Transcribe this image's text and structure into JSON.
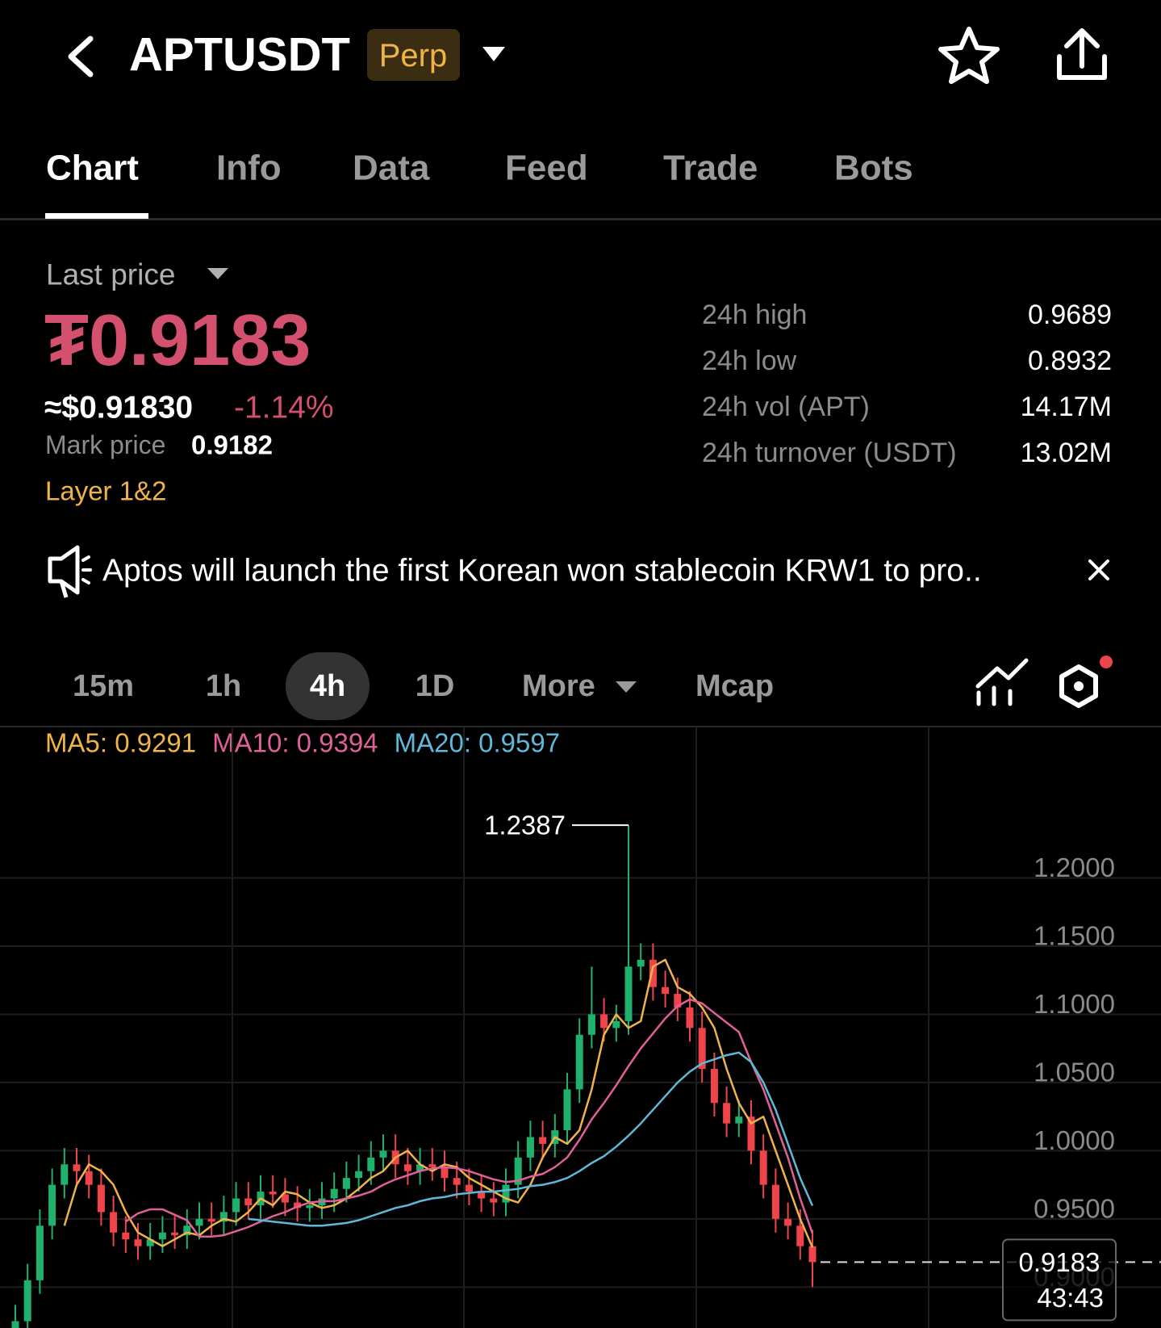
{
  "header": {
    "title": "APTUSDT",
    "badge": "Perp"
  },
  "tabs": [
    "Chart",
    "Info",
    "Data",
    "Feed",
    "Trade",
    "Bots"
  ],
  "price": {
    "label": "Last price",
    "last": "₮0.9183",
    "usd": "≈$0.91830",
    "change": "-1.14%",
    "mark_label": "Mark price",
    "mark": "0.9182",
    "tag": "Layer 1&2"
  },
  "stats": [
    {
      "label": "24h high",
      "value": "0.9689"
    },
    {
      "label": "24h low",
      "value": "0.8932"
    },
    {
      "label": "24h vol (APT)",
      "value": "14.17M"
    },
    {
      "label": "24h turnover (USDT)",
      "value": "13.02M"
    }
  ],
  "announcement": "Aptos will launch the first Korean won stablecoin KRW1 to pro..",
  "timeframes": [
    "15m",
    "1h",
    "4h",
    "1D",
    "More",
    "Mcap"
  ],
  "chart_data": {
    "type": "candlestick",
    "up_color": "#20b26c",
    "down_color": "#ef454a",
    "countdown": "43:43",
    "ylim": [
      0.87,
      1.311
    ],
    "yticks": [
      {
        "value": 0.9,
        "label": "0.9000"
      },
      {
        "value": 0.95,
        "label": "0.9500"
      },
      {
        "value": 1.0,
        "label": "1.0000"
      },
      {
        "value": 1.05,
        "label": "1.0500"
      },
      {
        "value": 1.1,
        "label": "1.1000"
      },
      {
        "value": 1.15,
        "label": "1.1500"
      },
      {
        "value": 1.2,
        "label": "1.2000"
      }
    ],
    "grid": true,
    "open": [
      0.86,
      0.875,
      0.905,
      0.945,
      0.975,
      0.99,
      0.985,
      0.975,
      0.955,
      0.94,
      0.935,
      0.93,
      0.935,
      0.94,
      0.938,
      0.945,
      0.95,
      0.948,
      0.955,
      0.965,
      0.96,
      0.97,
      0.968,
      0.962,
      0.958,
      0.96,
      0.965,
      0.972,
      0.98,
      0.985,
      0.995,
      1.0,
      0.99,
      0.985,
      0.99,
      0.988,
      0.98,
      0.975,
      0.97,
      0.965,
      0.962,
      0.975,
      0.995,
      1.01,
      1.005,
      1.015,
      1.045,
      1.085,
      1.1,
      1.09,
      1.095,
      1.135,
      1.14,
      1.12,
      1.115,
      1.105,
      1.09,
      1.06,
      1.035,
      1.02,
      1.025,
      1.0,
      0.975,
      0.95,
      0.945,
      0.93
    ],
    "high": [
      0.887,
      0.917,
      0.957,
      0.987,
      1.002,
      1.002,
      0.997,
      0.987,
      0.967,
      0.952,
      0.947,
      0.947,
      0.952,
      0.952,
      0.957,
      0.962,
      0.962,
      0.967,
      0.977,
      0.977,
      0.982,
      0.982,
      0.98,
      0.974,
      0.972,
      0.977,
      0.984,
      0.992,
      0.997,
      1.007,
      1.012,
      1.012,
      1.002,
      1.002,
      1.002,
      1.0,
      0.992,
      0.987,
      0.982,
      0.977,
      0.987,
      1.007,
      1.022,
      1.022,
      1.027,
      1.057,
      1.097,
      1.135,
      1.112,
      1.107,
      1.2387,
      1.152,
      1.152,
      1.132,
      1.127,
      1.117,
      1.102,
      1.072,
      1.047,
      1.037,
      1.037,
      1.012,
      0.987,
      0.962,
      0.957,
      0.942
    ],
    "low": [
      0.85,
      0.865,
      0.895,
      0.935,
      0.965,
      0.975,
      0.965,
      0.945,
      0.93,
      0.925,
      0.92,
      0.92,
      0.925,
      0.928,
      0.928,
      0.935,
      0.938,
      0.938,
      0.945,
      0.95,
      0.95,
      0.958,
      0.952,
      0.948,
      0.948,
      0.95,
      0.955,
      0.962,
      0.97,
      0.975,
      0.985,
      0.98,
      0.975,
      0.975,
      0.978,
      0.97,
      0.965,
      0.96,
      0.955,
      0.952,
      0.952,
      0.965,
      0.985,
      0.995,
      0.995,
      1.005,
      1.035,
      1.075,
      1.08,
      1.08,
      1.085,
      1.125,
      1.11,
      1.105,
      1.095,
      1.08,
      1.05,
      1.025,
      1.01,
      1.01,
      0.99,
      0.965,
      0.94,
      0.935,
      0.92,
      0.9
    ],
    "close": [
      0.875,
      0.905,
      0.945,
      0.975,
      0.99,
      0.985,
      0.975,
      0.955,
      0.94,
      0.935,
      0.93,
      0.935,
      0.94,
      0.938,
      0.945,
      0.95,
      0.948,
      0.955,
      0.965,
      0.96,
      0.97,
      0.968,
      0.962,
      0.958,
      0.96,
      0.965,
      0.972,
      0.98,
      0.985,
      0.995,
      1.0,
      0.99,
      0.985,
      0.99,
      0.988,
      0.98,
      0.975,
      0.97,
      0.965,
      0.962,
      0.975,
      0.995,
      1.01,
      1.005,
      1.015,
      1.045,
      1.085,
      1.1,
      1.09,
      1.095,
      1.135,
      1.14,
      1.12,
      1.115,
      1.105,
      1.09,
      1.06,
      1.035,
      1.02,
      1.025,
      1.0,
      0.975,
      0.95,
      0.945,
      0.93,
      0.9183
    ],
    "series": [
      {
        "name": "MA5: 0.9291",
        "color": "#f0b34a",
        "values": [
          null,
          null,
          null,
          null,
          0.945,
          0.975,
          0.99,
          0.985,
          0.975,
          0.955,
          0.94,
          0.935,
          0.93,
          0.935,
          0.94,
          0.938,
          0.945,
          0.95,
          0.948,
          0.955,
          0.965,
          0.96,
          0.97,
          0.968,
          0.962,
          0.958,
          0.96,
          0.965,
          0.972,
          0.98,
          0.985,
          0.995,
          1.0,
          0.99,
          0.985,
          0.99,
          0.988,
          0.98,
          0.975,
          0.97,
          0.965,
          0.962,
          0.975,
          0.995,
          1.01,
          1.005,
          1.015,
          1.045,
          1.085,
          1.1,
          1.09,
          1.095,
          1.135,
          1.14,
          1.12,
          1.115,
          1.105,
          1.09,
          1.06,
          1.035,
          1.02,
          1.025,
          1.0,
          0.975,
          0.95,
          0.9291
        ]
      },
      {
        "name": "MA10: 0.9394",
        "color": "#e0609a",
        "values": [
          null,
          null,
          null,
          null,
          null,
          null,
          null,
          null,
          null,
          0.948,
          0.954,
          0.957,
          0.957,
          0.953,
          0.949,
          0.937,
          0.937,
          0.938,
          0.941,
          0.944,
          0.948,
          0.952,
          0.955,
          0.959,
          0.962,
          0.963,
          0.963,
          0.965,
          0.967,
          0.97,
          0.975,
          0.979,
          0.982,
          0.985,
          0.987,
          0.988,
          0.987,
          0.985,
          0.982,
          0.979,
          0.977,
          0.978,
          0.981,
          0.983,
          0.988,
          0.995,
          1.008,
          1.023,
          1.035,
          1.048,
          1.062,
          1.075,
          1.086,
          1.097,
          1.106,
          1.111,
          1.108,
          1.101,
          1.094,
          1.087,
          1.065,
          1.045,
          1.02,
          0.995,
          0.965,
          0.9394
        ]
      },
      {
        "name": "MA20: 0.9597",
        "color": "#5fb8d8",
        "values": [
          null,
          null,
          null,
          null,
          null,
          null,
          null,
          null,
          null,
          null,
          null,
          null,
          null,
          null,
          null,
          null,
          null,
          null,
          null,
          0.95,
          0.949,
          0.948,
          0.947,
          0.946,
          0.945,
          0.945,
          0.946,
          0.947,
          0.949,
          0.952,
          0.955,
          0.958,
          0.96,
          0.963,
          0.965,
          0.966,
          0.968,
          0.969,
          0.97,
          0.97,
          0.971,
          0.972,
          0.974,
          0.975,
          0.977,
          0.98,
          0.985,
          0.991,
          0.996,
          1.003,
          1.011,
          1.02,
          1.03,
          1.04,
          1.05,
          1.058,
          1.064,
          1.067,
          1.07,
          1.072,
          1.065,
          1.05,
          1.03,
          1.005,
          0.98,
          0.9597
        ]
      }
    ]
  }
}
